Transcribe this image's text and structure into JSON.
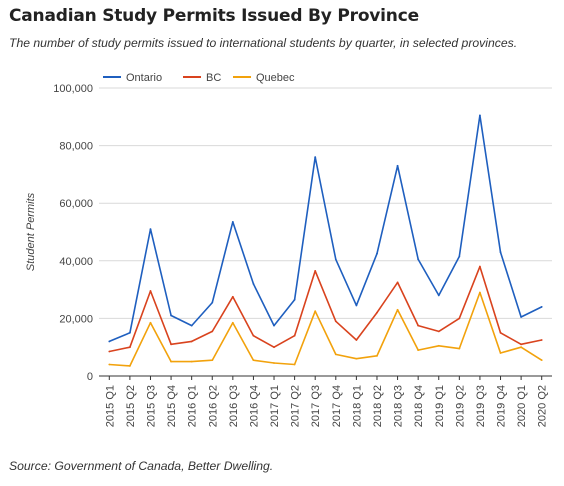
{
  "header": {
    "title": "Canadian Study Permits Issued By Province",
    "subtitle": "The number of study permits issued to international students by quarter, in selected provinces."
  },
  "footer": {
    "source": "Source: Government of Canada, Better Dwelling."
  },
  "chart_data": {
    "type": "line",
    "title": "Canadian Study Permits Issued By Province",
    "xlabel": "",
    "ylabel": "Student Permits",
    "ylim": [
      0,
      100000
    ],
    "yticks": [
      {
        "value": 0,
        "label": "0"
      },
      {
        "value": 20000,
        "label": "20,000"
      },
      {
        "value": 40000,
        "label": "40,000"
      },
      {
        "value": 60000,
        "label": "60,000"
      },
      {
        "value": 80000,
        "label": "80,000"
      },
      {
        "value": 100000,
        "label": "100,000"
      }
    ],
    "grid": true,
    "legend_position": "top-left",
    "categories": [
      "2015 Q1",
      "2015 Q2",
      "2015 Q3",
      "2015 Q4",
      "2016 Q1",
      "2016 Q2",
      "2016 Q3",
      "2016 Q4",
      "2017 Q1",
      "2017 Q2",
      "2017 Q3",
      "2017 Q4",
      "2018 Q1",
      "2018 Q2",
      "2018 Q3",
      "2018 Q4",
      "2019 Q1",
      "2019 Q2",
      "2019 Q3",
      "2019 Q4",
      "2020 Q1",
      "2020 Q2"
    ],
    "series": [
      {
        "name": "Ontario",
        "color": "#1f5fbf",
        "values": [
          12000,
          15000,
          51000,
          21000,
          17500,
          25500,
          53500,
          32000,
          17500,
          26500,
          76000,
          40500,
          24500,
          42500,
          73000,
          40500,
          28000,
          41500,
          90500,
          43000,
          20500,
          24000
        ]
      },
      {
        "name": "BC",
        "color": "#d9431e",
        "values": [
          8500,
          10000,
          29500,
          11000,
          12000,
          15500,
          27500,
          14000,
          10000,
          14000,
          36500,
          19000,
          12500,
          22000,
          32500,
          17500,
          15500,
          20000,
          38000,
          15000,
          11000,
          12500
        ]
      },
      {
        "name": "Quebec",
        "color": "#f2a20c",
        "values": [
          4000,
          3500,
          18500,
          5000,
          5000,
          5500,
          18500,
          5500,
          4500,
          4000,
          22500,
          7500,
          6000,
          7000,
          23000,
          9000,
          10500,
          9500,
          29000,
          8000,
          10000,
          5500
        ]
      }
    ]
  }
}
